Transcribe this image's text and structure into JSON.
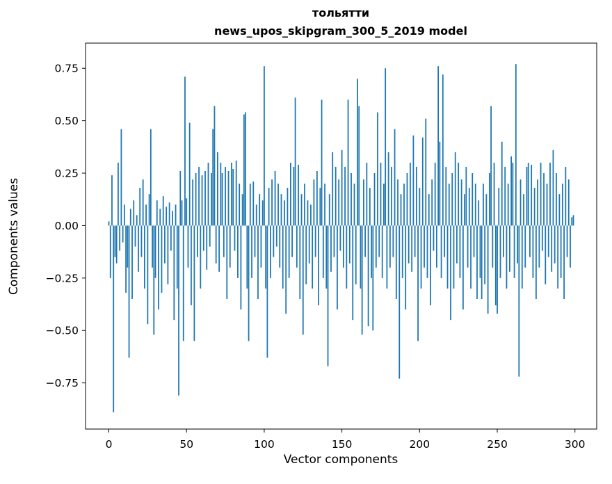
{
  "chart_data": {
    "type": "bar",
    "title_line1": "тольятти",
    "title_line2": "news_upos_skipgram_300_5_2019 model",
    "xlabel": "Vector components",
    "ylabel": "Components values",
    "bar_color": "#1f77b4",
    "n_components": 300,
    "xlim": [
      -15,
      314
    ],
    "ylim": [
      -0.97,
      0.87
    ],
    "xticks": [
      0,
      50,
      100,
      150,
      200,
      250,
      300
    ],
    "yticks": [
      -0.75,
      -0.5,
      -0.25,
      0.0,
      0.25,
      0.5,
      0.75
    ],
    "values": [
      0.02,
      -0.25,
      0.24,
      -0.89,
      -0.15,
      -0.18,
      0.3,
      -0.12,
      0.46,
      -0.08,
      0.1,
      -0.32,
      -0.2,
      -0.63,
      0.08,
      -0.35,
      0.12,
      -0.1,
      0.05,
      -0.22,
      0.18,
      -0.15,
      0.22,
      -0.3,
      0.1,
      -0.47,
      0.15,
      0.46,
      -0.2,
      -0.52,
      -0.25,
      0.12,
      -0.4,
      0.08,
      -0.32,
      0.14,
      -0.18,
      0.09,
      -0.28,
      0.11,
      -0.12,
      0.07,
      -0.45,
      0.1,
      -0.3,
      -0.81,
      0.26,
      0.12,
      -0.55,
      0.71,
      0.13,
      -0.2,
      0.49,
      -0.38,
      0.22,
      -0.55,
      0.25,
      -0.15,
      0.28,
      -0.3,
      0.24,
      -0.12,
      0.26,
      -0.21,
      0.3,
      -0.1,
      0.25,
      0.46,
      0.57,
      -0.18,
      0.35,
      -0.22,
      0.3,
      0.25,
      -0.15,
      0.28,
      -0.35,
      0.26,
      -0.2,
      0.3,
      0.27,
      -0.12,
      0.31,
      -0.25,
      0.2,
      -0.4,
      0.15,
      0.53,
      0.54,
      -0.3,
      -0.55,
      0.2,
      -0.25,
      0.21,
      -0.15,
      0.1,
      -0.35,
      0.15,
      -0.2,
      0.12,
      0.76,
      -0.3,
      -0.63,
      0.18,
      -0.25,
      0.22,
      -0.15,
      0.26,
      -0.1,
      0.2,
      -0.2,
      0.15,
      -0.3,
      0.12,
      -0.42,
      0.18,
      -0.25,
      0.3,
      -0.15,
      0.28,
      0.61,
      -0.2,
      0.29,
      -0.35,
      0.15,
      -0.52,
      0.2,
      -0.28,
      0.12,
      -0.18,
      0.1,
      -0.3,
      0.22,
      -0.15,
      0.26,
      -0.38,
      0.18,
      0.6,
      -0.25,
      0.2,
      -0.3,
      -0.67,
      0.15,
      -0.22,
      0.35,
      -0.15,
      0.28,
      -0.4,
      0.22,
      -0.12,
      0.36,
      -0.2,
      0.28,
      -0.3,
      0.6,
      -0.18,
      0.25,
      -0.45,
      0.2,
      -0.28,
      0.7,
      0.57,
      -0.3,
      -0.52,
      0.22,
      -0.15,
      0.3,
      -0.48,
      0.18,
      -0.25,
      -0.5,
      0.25,
      -0.2,
      0.54,
      -0.15,
      0.3,
      -0.25,
      0.2,
      0.75,
      -0.3,
      0.35,
      -0.2,
      0.28,
      -0.15,
      0.46,
      -0.35,
      0.22,
      -0.73,
      0.15,
      -0.25,
      0.2,
      -0.4,
      0.25,
      -0.18,
      0.3,
      -0.22,
      0.43,
      -0.15,
      0.28,
      -0.55,
      0.18,
      -0.3,
      0.42,
      -0.2,
      0.51,
      -0.25,
      0.15,
      -0.38,
      0.22,
      -0.12,
      0.3,
      -0.2,
      0.76,
      0.4,
      -0.25,
      0.72,
      -0.15,
      0.28,
      -0.3,
      0.2,
      -0.45,
      0.25,
      -0.3,
      0.35,
      -0.18,
      0.3,
      -0.25,
      0.22,
      -0.4,
      0.15,
      0.28,
      -0.2,
      0.18,
      -0.3,
      0.25,
      -0.15,
      0.2,
      -0.35,
      0.12,
      -0.25,
      -0.35,
      0.2,
      -0.28,
      0.15,
      -0.42,
      0.25,
      0.57,
      -0.2,
      0.3,
      -0.38,
      -0.42,
      0.18,
      -0.25,
      0.4,
      -0.15,
      0.28,
      -0.3,
      0.2,
      -0.22,
      0.33,
      0.3,
      -0.25,
      0.77,
      -0.18,
      -0.72,
      0.22,
      -0.3,
      0.15,
      -0.2,
      0.28,
      0.3,
      -0.15,
      0.29,
      -0.25,
      0.18,
      -0.35,
      0.22,
      -0.2,
      0.3,
      -0.12,
      0.25,
      -0.28,
      0.2,
      -0.15,
      0.3,
      -0.22,
      0.36,
      -0.18,
      0.25,
      -0.3,
      0.15,
      -0.25,
      0.2,
      -0.35,
      0.28,
      -0.15,
      0.22,
      -0.2,
      0.04,
      0.05
    ]
  }
}
